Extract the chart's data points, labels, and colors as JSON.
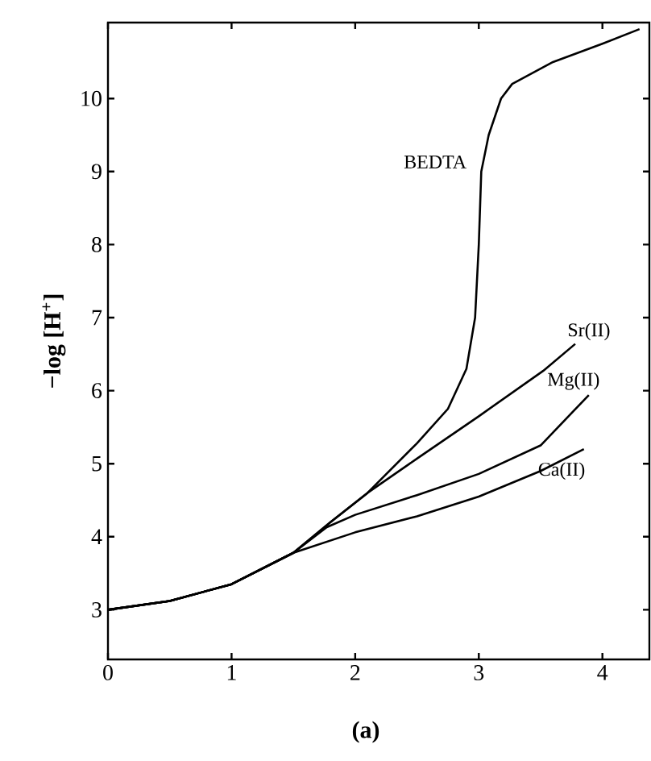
{
  "chart_data": {
    "type": "line",
    "ylabel": "−log [H$^{+}$]",
    "xlim": [
      0,
      4.38
    ],
    "ylim": [
      2.32,
      11.04
    ],
    "xticks": [
      0,
      1,
      2,
      3,
      4
    ],
    "yticks": [
      3,
      4,
      5,
      6,
      7,
      8,
      9,
      10
    ],
    "annotations": [
      "(a)"
    ],
    "series": [
      {
        "name": "BEDTA",
        "color": "#000000",
        "x": [
          0,
          0.5,
          1,
          1.5,
          1.8,
          2.1,
          2.5,
          2.75,
          2.9,
          2.97,
          3.0,
          3.02,
          3.08,
          3.18,
          3.27,
          3.6,
          4.0,
          4.3
        ],
        "values": [
          3.0,
          3.12,
          3.35,
          3.78,
          4.2,
          4.6,
          5.28,
          5.75,
          6.3,
          7.0,
          8.0,
          9.0,
          9.5,
          10.0,
          10.2,
          10.5,
          10.75,
          10.95
        ]
      },
      {
        "name": "Sr(II)",
        "color": "#000000",
        "x": [
          0,
          0.5,
          1,
          1.5,
          1.8,
          2.1,
          2.5,
          3.0,
          3.52,
          3.78
        ],
        "values": [
          3.0,
          3.12,
          3.35,
          3.78,
          4.2,
          4.6,
          5.07,
          5.65,
          6.27,
          6.64
        ]
      },
      {
        "name": "Mg(II)",
        "color": "#000000",
        "x": [
          0,
          0.5,
          1,
          1.5,
          1.77,
          2.0,
          2.5,
          3.0,
          3.5,
          3.89
        ],
        "values": [
          3.0,
          3.12,
          3.35,
          3.78,
          4.13,
          4.3,
          4.57,
          4.86,
          5.25,
          5.94
        ]
      },
      {
        "name": "Ca(II)",
        "color": "#000000",
        "x": [
          0,
          0.5,
          1,
          1.5,
          2.0,
          2.5,
          3.0,
          3.5,
          3.85
        ],
        "values": [
          3.0,
          3.12,
          3.35,
          3.78,
          4.06,
          4.28,
          4.55,
          4.9,
          5.2
        ]
      }
    ]
  }
}
